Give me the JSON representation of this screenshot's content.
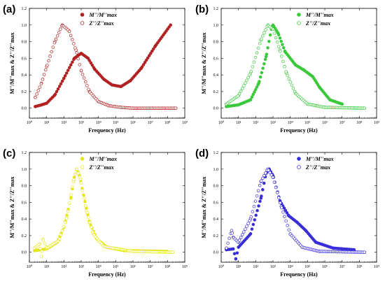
{
  "chart_data": [
    {
      "panel": "(a)",
      "type": "scatter",
      "x_scale": "log",
      "xlim": [
        1,
        1000000000
      ],
      "ylim": [
        -0.12,
        1.2
      ],
      "yticks": [
        0.0,
        0.2,
        0.4,
        0.6,
        0.8,
        1.0,
        1.2
      ],
      "xticks": [
        1,
        10,
        100,
        1000,
        10000,
        100000,
        1000000,
        10000000,
        100000000,
        1000000000
      ],
      "xlabel": "Frequency (Hz)",
      "ylabel": "M''/M''max & Z''/Z''max",
      "legend_position": "top-center",
      "grid": false,
      "series": [
        {
          "name": "M''/M''max",
          "marker": "filled-circle",
          "color": "#b22222",
          "points": [
            [
              2.2,
              0.02
            ],
            [
              5,
              0.04
            ],
            [
              10,
              0.06
            ],
            [
              30,
              0.16
            ],
            [
              100,
              0.36
            ],
            [
              400,
              0.6
            ],
            [
              1000,
              0.66
            ],
            [
              2500,
              0.6
            ],
            [
              6000,
              0.47
            ],
            [
              20000,
              0.35
            ],
            [
              60000,
              0.28
            ],
            [
              200000,
              0.26
            ],
            [
              700000,
              0.33
            ],
            [
              3000000,
              0.48
            ],
            [
              20000000,
              0.75
            ],
            [
              150000000,
              1.0
            ]
          ]
        },
        {
          "name": "Z''/Z''max",
          "marker": "open-circle",
          "color": "#b22222",
          "points": [
            [
              2.2,
              0.13
            ],
            [
              5,
              0.3
            ],
            [
              10,
              0.5
            ],
            [
              30,
              0.8
            ],
            [
              80,
              1.0
            ],
            [
              200,
              0.93
            ],
            [
              500,
              0.7
            ],
            [
              1000,
              0.45
            ],
            [
              3000,
              0.2
            ],
            [
              10000,
              0.08
            ],
            [
              40000,
              0.03
            ],
            [
              200000,
              0.01
            ],
            [
              1000000,
              0.0
            ],
            [
              300000000,
              0.0
            ]
          ]
        }
      ]
    },
    {
      "panel": "(b)",
      "type": "scatter",
      "x_scale": "log",
      "xlim": [
        1,
        1000000000
      ],
      "ylim": [
        -0.12,
        1.2
      ],
      "yticks": [
        0.0,
        0.2,
        0.4,
        0.6,
        0.8,
        1.0,
        1.2
      ],
      "xticks": [
        1,
        10,
        100,
        1000,
        10000,
        100000,
        1000000,
        10000000,
        100000000,
        1000000000
      ],
      "xlabel": "Frequency (Hz)",
      "ylabel": "M''/M''max & Z''/Z''max",
      "legend_position": "top-right",
      "grid": false,
      "series": [
        {
          "name": "M''/M''max",
          "marker": "filled-circle",
          "color": "#3cc83c",
          "points": [
            [
              2,
              0.02
            ],
            [
              10,
              0.04
            ],
            [
              50,
              0.1
            ],
            [
              150,
              0.3
            ],
            [
              400,
              0.62
            ],
            [
              800,
              0.95
            ],
            [
              1000,
              1.0
            ],
            [
              2000,
              0.9
            ],
            [
              5000,
              0.68
            ],
            [
              20000,
              0.52
            ],
            [
              60000,
              0.46
            ],
            [
              200000,
              0.38
            ],
            [
              500000,
              0.25
            ],
            [
              2000000,
              0.1
            ],
            [
              10000000,
              0.05
            ]
          ]
        },
        {
          "name": "Z''/Z''max",
          "marker": "open-circle",
          "color": "#3cc83c",
          "points": [
            [
              2,
              0.05
            ],
            [
              10,
              0.15
            ],
            [
              50,
              0.42
            ],
            [
              200,
              0.82
            ],
            [
              500,
              1.0
            ],
            [
              1000,
              0.95
            ],
            [
              2500,
              0.7
            ],
            [
              6000,
              0.42
            ],
            [
              20000,
              0.18
            ],
            [
              100000,
              0.05
            ],
            [
              1000000,
              0.01
            ],
            [
              200000000,
              0.0
            ]
          ]
        }
      ]
    },
    {
      "panel": "(c)",
      "type": "scatter",
      "x_scale": "log",
      "xlim": [
        1,
        1000000000
      ],
      "ylim": [
        -0.12,
        1.2
      ],
      "yticks": [
        0.0,
        0.2,
        0.4,
        0.6,
        0.8,
        1.0,
        1.2
      ],
      "xticks": [
        1,
        10,
        100,
        1000,
        10000,
        100000,
        1000000,
        10000000,
        100000000,
        1000000000
      ],
      "xlabel": "Frequency (Hz)",
      "ylabel": "M''/M''max & Z''/Z''max",
      "legend_position": "top-center",
      "grid": false,
      "series": [
        {
          "name": "M''/M''max",
          "marker": "filled-circle",
          "color": "#e6e61e",
          "points": [
            [
              2,
              0.02
            ],
            [
              10,
              0.04
            ],
            [
              40,
              0.12
            ],
            [
              100,
              0.3
            ],
            [
              250,
              0.65
            ],
            [
              400,
              0.9
            ],
            [
              550,
              1.0
            ],
            [
              800,
              0.92
            ],
            [
              1500,
              0.65
            ],
            [
              3000,
              0.36
            ],
            [
              8000,
              0.16
            ],
            [
              30000,
              0.06
            ],
            [
              300000,
              0.02
            ],
            [
              100000000,
              0.01
            ]
          ]
        },
        {
          "name": "Z''/Z''max",
          "marker": "open-circle",
          "color": "#e6e61e",
          "points": [
            [
              2,
              0.05
            ],
            [
              4,
              0.1
            ],
            [
              5,
              -0.05
            ],
            [
              6,
              0.16
            ],
            [
              10,
              0.05
            ],
            [
              50,
              0.14
            ],
            [
              150,
              0.42
            ],
            [
              350,
              0.85
            ],
            [
              550,
              1.0
            ],
            [
              900,
              0.88
            ],
            [
              2000,
              0.5
            ],
            [
              5000,
              0.22
            ],
            [
              20000,
              0.07
            ],
            [
              1000000,
              0.01
            ],
            [
              200000000,
              0.0
            ]
          ]
        }
      ]
    },
    {
      "panel": "(d)",
      "type": "scatter",
      "x_scale": "log",
      "xlim": [
        1,
        1000000000
      ],
      "ylim": [
        -0.12,
        1.2
      ],
      "yticks": [
        0.0,
        0.2,
        0.4,
        0.6,
        0.8,
        1.0,
        1.2
      ],
      "xticks": [
        1,
        10,
        100,
        1000,
        10000,
        100000,
        1000000,
        10000000,
        100000000,
        1000000000
      ],
      "xlabel": "Frequency (Hz)",
      "ylabel": "M''/M''max & Z''/Z''max",
      "legend_position": "top-right",
      "grid": false,
      "series": [
        {
          "name": "M''/M''max",
          "marker": "filled-circle",
          "color": "#3a2fd6",
          "points": [
            [
              2,
              0.03
            ],
            [
              5,
              0.04
            ],
            [
              7,
              -0.08
            ],
            [
              10,
              0.06
            ],
            [
              50,
              0.22
            ],
            [
              200,
              0.65
            ],
            [
              400,
              0.95
            ],
            [
              600,
              1.0
            ],
            [
              1000,
              0.92
            ],
            [
              2500,
              0.62
            ],
            [
              8000,
              0.44
            ],
            [
              25000,
              0.36
            ],
            [
              80000,
              0.26
            ],
            [
              300000,
              0.12
            ],
            [
              3000000,
              0.05
            ],
            [
              50000000,
              0.03
            ]
          ]
        },
        {
          "name": "Z''/Z''max",
          "marker": "open-circle",
          "color": "#3a2fd6",
          "points": [
            [
              2,
              0.05
            ],
            [
              4,
              0.26
            ],
            [
              5,
              0.18
            ],
            [
              10,
              0.12
            ],
            [
              50,
              0.4
            ],
            [
              200,
              0.85
            ],
            [
              500,
              1.0
            ],
            [
              1000,
              0.9
            ],
            [
              3000,
              0.55
            ],
            [
              10000,
              0.22
            ],
            [
              50000,
              0.06
            ],
            [
              500000,
              0.01
            ],
            [
              200000000,
              0.0
            ]
          ]
        }
      ]
    }
  ]
}
